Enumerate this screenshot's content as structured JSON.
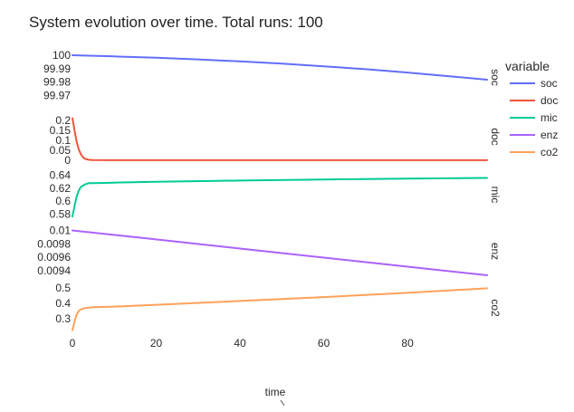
{
  "chart_data": {
    "type": "line",
    "title": "System evolution over time. Total runs: 100",
    "xlabel": "time",
    "xlim": [
      0,
      99
    ],
    "x_ticks": [
      "0",
      "20",
      "40",
      "60",
      "80"
    ],
    "legend": {
      "title": "variable",
      "placement": "right"
    },
    "facets": [
      {
        "name": "soc",
        "color": "#636efa",
        "ylim": [
          99.965,
          100.002
        ],
        "y_ticks": [
          "100",
          "99.99",
          "99.98",
          "99.97"
        ],
        "y_tick_values": [
          100,
          99.99,
          99.98,
          99.97
        ],
        "x": [
          0,
          10,
          20,
          30,
          40,
          50,
          60,
          70,
          80,
          90,
          99
        ],
        "y": [
          100,
          99.9991,
          99.9981,
          99.9969,
          99.9954,
          99.9937,
          99.9918,
          99.9896,
          99.9871,
          99.9844,
          99.9818
        ]
      },
      {
        "name": "doc",
        "color": "#ef553b",
        "ylim": [
          -0.005,
          0.24
        ],
        "y_ticks": [
          "0.2",
          "0.15",
          "0.1",
          "0.05",
          "0"
        ],
        "y_tick_values": [
          0.2,
          0.15,
          0.1,
          0.05,
          0
        ],
        "x": [
          0,
          0.5,
          1,
          1.5,
          2,
          2.5,
          3,
          4,
          5,
          10,
          20,
          40,
          60,
          80,
          99
        ],
        "y": [
          0.21,
          0.15,
          0.095,
          0.055,
          0.03,
          0.015,
          0.007,
          0.002,
          0.0005,
          0.0002,
          0.0002,
          0.0002,
          0.0002,
          0.0002,
          0.0002
        ]
      },
      {
        "name": "mic",
        "color": "#00cc96",
        "ylim": [
          0.572,
          0.648
        ],
        "y_ticks": [
          "0.64",
          "0.62",
          "0.6",
          "0.58"
        ],
        "y_tick_values": [
          0.64,
          0.62,
          0.6,
          0.58
        ],
        "x": [
          0,
          0.5,
          1,
          1.5,
          2,
          3,
          4,
          5,
          10,
          20,
          40,
          60,
          80,
          99
        ],
        "y": [
          0.576,
          0.592,
          0.607,
          0.616,
          0.622,
          0.626,
          0.628,
          0.628,
          0.6287,
          0.63,
          0.632,
          0.6337,
          0.635,
          0.636
        ]
      },
      {
        "name": "enz",
        "color": "#ab63fa",
        "ylim": [
          0.00932,
          0.01006
        ],
        "y_ticks": [
          "0.01",
          "0.0098",
          "0.0096",
          "0.0094"
        ],
        "y_tick_values": [
          0.01,
          0.0098,
          0.0096,
          0.0094
        ],
        "x": [
          0,
          20,
          40,
          60,
          80,
          99
        ],
        "y": [
          0.01,
          0.009866,
          0.009731,
          0.009596,
          0.009461,
          0.009333
        ]
      },
      {
        "name": "co2",
        "color": "#ffa15a",
        "ylim": [
          0.205,
          0.535
        ],
        "y_ticks": [
          "0.5",
          "0.4",
          "0.3"
        ],
        "y_tick_values": [
          0.5,
          0.4,
          0.3
        ],
        "x": [
          0,
          0.5,
          1,
          1.5,
          2,
          3,
          4,
          5,
          10,
          20,
          40,
          60,
          80,
          99
        ],
        "y": [
          0.225,
          0.28,
          0.325,
          0.35,
          0.36,
          0.368,
          0.372,
          0.374,
          0.378,
          0.39,
          0.415,
          0.44,
          0.468,
          0.497
        ]
      }
    ]
  }
}
